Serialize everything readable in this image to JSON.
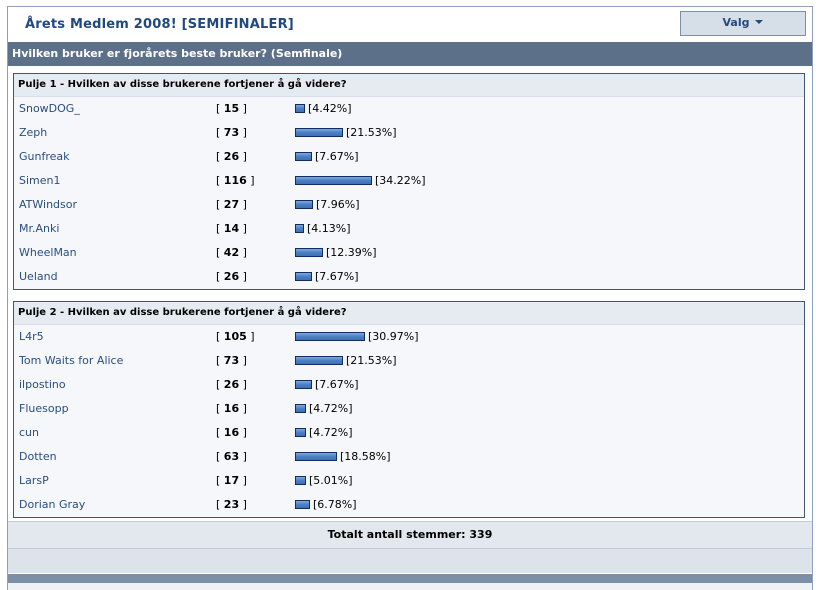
{
  "header": {
    "title": "Årets Medlem 2008! [SEMIFINALER]",
    "options_label": "Valg"
  },
  "subtitle": "Hvilken bruker er fjorårets beste bruker? (Semfinale)",
  "pools": [
    {
      "question": "Pulje 1 - Hvilken av disse brukerene fortjener å gå videre?",
      "options": [
        {
          "name": "SnowDOG_",
          "votes": "15",
          "percent": 4.42,
          "percent_label": "[4.42%]"
        },
        {
          "name": "Zeph",
          "votes": "73",
          "percent": 21.53,
          "percent_label": "[21.53%]"
        },
        {
          "name": "Gunfreak",
          "votes": "26",
          "percent": 7.67,
          "percent_label": "[7.67%]"
        },
        {
          "name": "Simen1",
          "votes": "116",
          "percent": 34.22,
          "percent_label": "[34.22%]"
        },
        {
          "name": "ATWindsor",
          "votes": "27",
          "percent": 7.96,
          "percent_label": "[7.96%]"
        },
        {
          "name": "Mr.Anki",
          "votes": "14",
          "percent": 4.13,
          "percent_label": "[4.13%]"
        },
        {
          "name": "WheelMan",
          "votes": "42",
          "percent": 12.39,
          "percent_label": "[12.39%]"
        },
        {
          "name": "Ueland",
          "votes": "26",
          "percent": 7.67,
          "percent_label": "[7.67%]"
        }
      ]
    },
    {
      "question": "Pulje 2 - Hvilken av disse brukerene fortjener å gå videre?",
      "options": [
        {
          "name": "L4r5",
          "votes": "105",
          "percent": 30.97,
          "percent_label": "[30.97%]"
        },
        {
          "name": "Tom Waits for Alice",
          "votes": "73",
          "percent": 21.53,
          "percent_label": "[21.53%]"
        },
        {
          "name": "ilpostino",
          "votes": "26",
          "percent": 7.67,
          "percent_label": "[7.67%]"
        },
        {
          "name": "Fluesopp",
          "votes": "16",
          "percent": 4.72,
          "percent_label": "[4.72%]"
        },
        {
          "name": "cun",
          "votes": "16",
          "percent": 4.72,
          "percent_label": "[4.72%]"
        },
        {
          "name": "Dotten",
          "votes": "63",
          "percent": 18.58,
          "percent_label": "[18.58%]"
        },
        {
          "name": "LarsP",
          "votes": "17",
          "percent": 5.01,
          "percent_label": "[5.01%]"
        },
        {
          "name": "Dorian Gray",
          "votes": "23",
          "percent": 6.78,
          "percent_label": "[6.78%]"
        }
      ]
    }
  ],
  "total_label": "Totalt antall stemmer: 339",
  "colors": {
    "header_bar": "#5d7089",
    "link": "#294e80",
    "bar_fill": "#4d7fc4",
    "bar_border": "#102d66"
  }
}
